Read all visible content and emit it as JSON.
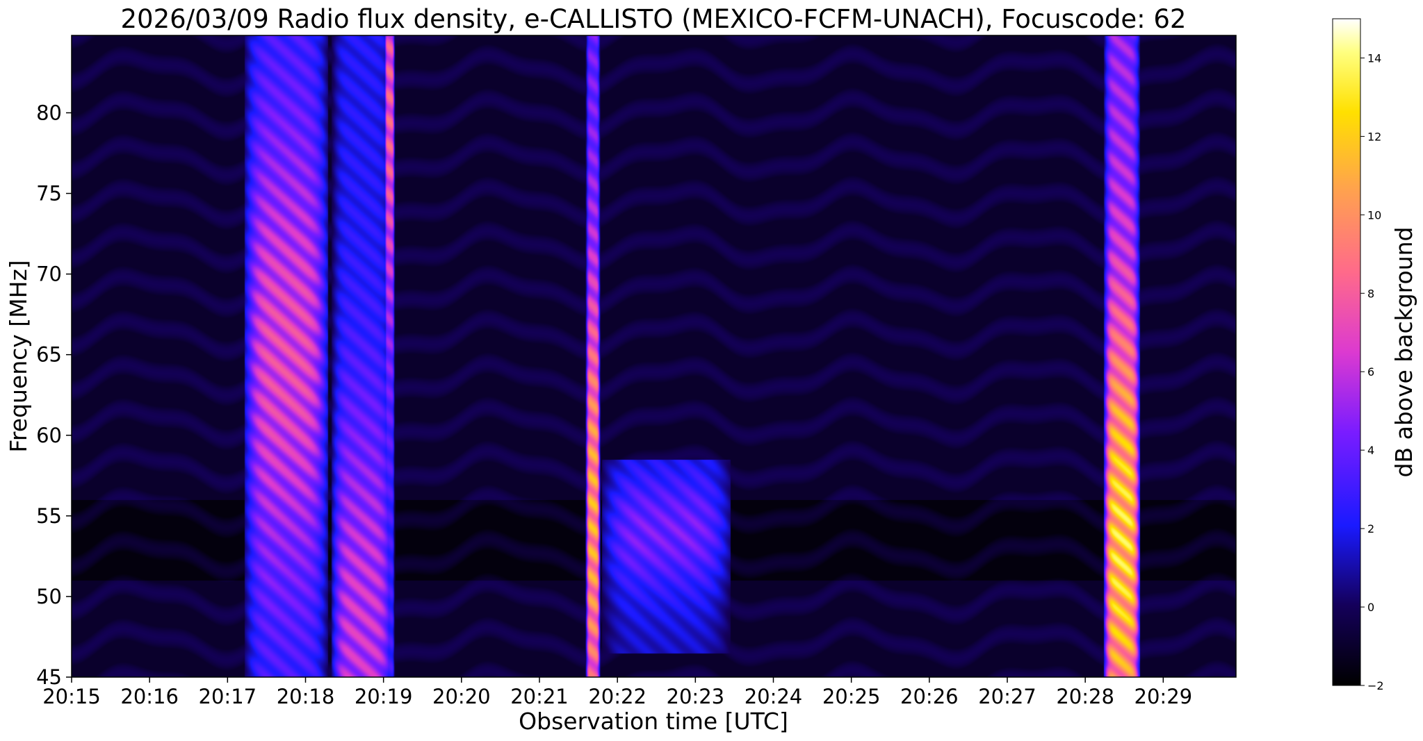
{
  "chart_data": {
    "type": "heatmap",
    "title": "2026/03/09  Radio flux density, e-CALLISTO (MEXICO-FCFM-UNACH), Focuscode: 62",
    "xlabel": "Observation time [UTC]",
    "ylabel": "Frequency [MHz]",
    "x_ticks": [
      "20:15",
      "20:16",
      "20:17",
      "20:18",
      "20:19",
      "20:20",
      "20:21",
      "20:22",
      "20:23",
      "20:24",
      "20:25",
      "20:26",
      "20:27",
      "20:28",
      "20:29"
    ],
    "xlim": [
      "20:15:00",
      "20:29:56"
    ],
    "y_ticks": [
      45,
      50,
      55,
      60,
      65,
      70,
      75,
      80
    ],
    "ylim": [
      45,
      84.8
    ],
    "colorbar": {
      "label": "dB above background",
      "range": [
        -2,
        15
      ],
      "ticks": [
        -2,
        0,
        2,
        4,
        6,
        8,
        10,
        12,
        14
      ],
      "colormap": "gnuplot2"
    },
    "background_db": -1,
    "bursts": [
      {
        "id": "broadband-continuum",
        "t_start": "20:17:15",
        "t_end": "20:18:15",
        "f_low": 45,
        "f_high": 84.8,
        "peak_freq": 65,
        "peak_db": 8
      },
      {
        "id": "continuum-secondary",
        "t_start": "20:18:22",
        "t_end": "20:19:05",
        "f_low": 45,
        "f_high": 84.8,
        "peak_freq": 48.5,
        "peak_db": 7
      },
      {
        "id": "narrow-spike-1",
        "t_start": "20:19:02",
        "t_end": "20:19:07",
        "f_low": 45,
        "f_high": 84.8,
        "peak_freq": 80,
        "peak_db": 9
      },
      {
        "id": "type-III-1",
        "t_start": "20:21:37",
        "t_end": "20:21:45",
        "f_low": 45,
        "f_high": 84.8,
        "peak_freq": 55,
        "peak_db": 12
      },
      {
        "id": "diffuse-emission",
        "t_start": "20:21:50",
        "t_end": "20:23:25",
        "f_low": 47,
        "f_high": 58,
        "peak_freq": 54,
        "peak_db": 5
      },
      {
        "id": "type-III-2",
        "t_start": "20:28:16",
        "t_end": "20:28:40",
        "f_low": 45,
        "f_high": 84.8,
        "peak_freq": 53.5,
        "peak_db": 14
      }
    ]
  }
}
